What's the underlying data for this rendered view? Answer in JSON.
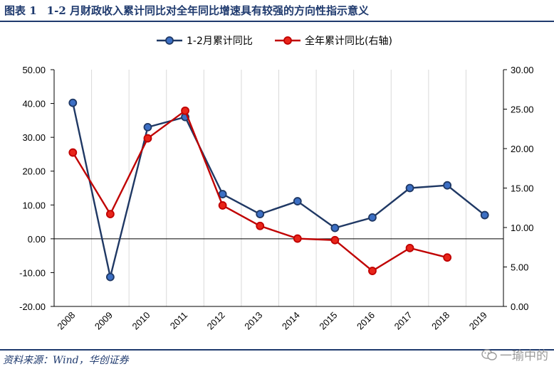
{
  "header": {
    "figure_label": "图表 1",
    "title": "1-2 月财政收入累计同比对全年同比增速具有较强的方向性指示意义"
  },
  "footer": {
    "source": "资料来源：Wind，华创证券",
    "watermark": "一瑜中的",
    "watermark_icon": "wechat-icon"
  },
  "colors": {
    "title": "#1f3a6e",
    "series_blue": "#1f3864",
    "series_blue_marker": "#3c6fc4",
    "series_red": "#c00000",
    "series_red_marker": "#e8251a"
  },
  "chart_data": {
    "type": "line",
    "categories": [
      "2008",
      "2009",
      "2010",
      "2011",
      "2012",
      "2013",
      "2014",
      "2015",
      "2016",
      "2017",
      "2018",
      "2019"
    ],
    "series": [
      {
        "name": "1-2月累计同比",
        "axis": "left",
        "values": [
          40.2,
          -11.3,
          33.0,
          36.0,
          13.2,
          7.3,
          11.1,
          3.2,
          6.3,
          15.0,
          15.8,
          7.0
        ]
      },
      {
        "name": "全年累计同比(右轴)",
        "axis": "right",
        "values": [
          19.5,
          11.7,
          21.3,
          24.8,
          12.8,
          10.2,
          8.6,
          8.4,
          4.5,
          7.4,
          6.2,
          null
        ]
      }
    ],
    "y_left": {
      "min": -20,
      "max": 50,
      "step": 10,
      "ticks": [
        "50.00",
        "40.00",
        "30.00",
        "20.00",
        "10.00",
        "0.00",
        "-10.00",
        "-20.00"
      ]
    },
    "y_right": {
      "min": 0,
      "max": 30,
      "step": 5,
      "ticks": [
        "30.00",
        "25.00",
        "20.00",
        "15.00",
        "10.00",
        "5.00",
        "0.00"
      ]
    },
    "grid": "vertical",
    "legend_position": "top"
  }
}
